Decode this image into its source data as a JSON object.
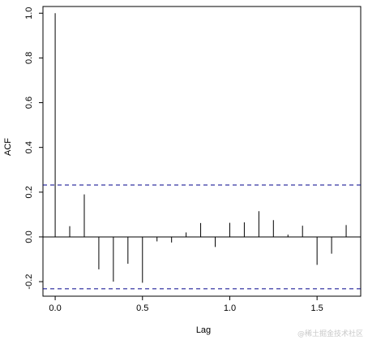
{
  "chart_data": {
    "type": "bar",
    "xlabel": "Lag",
    "ylabel": "ACF",
    "xlim": [
      -0.07,
      1.75
    ],
    "ylim": [
      -0.265,
      1.03
    ],
    "x_ticks": [
      "0.0",
      "0.5",
      "1.0",
      "1.5"
    ],
    "y_ticks": [
      "-0.2",
      "0.0",
      "0.2",
      "0.4",
      "0.6",
      "0.8",
      "1.0"
    ],
    "lags": [
      0.0,
      0.0833,
      0.1667,
      0.25,
      0.3333,
      0.4167,
      0.5,
      0.5833,
      0.6667,
      0.75,
      0.8333,
      0.9167,
      1.0,
      1.0833,
      1.1667,
      1.25,
      1.3333,
      1.4167,
      1.5,
      1.5833,
      1.6667
    ],
    "acf": [
      1.0,
      0.048,
      0.19,
      -0.145,
      -0.2,
      -0.12,
      -0.205,
      -0.02,
      -0.025,
      0.02,
      0.062,
      -0.045,
      0.063,
      0.065,
      0.115,
      0.075,
      0.01,
      0.05,
      -0.125,
      -0.075,
      0.053
    ],
    "conf_level": 0.232,
    "colors": {
      "spikes": "#000000",
      "zero_line": "#000000",
      "conf_band": "#00008b"
    }
  },
  "watermark": "@稀土掘金技术社区"
}
